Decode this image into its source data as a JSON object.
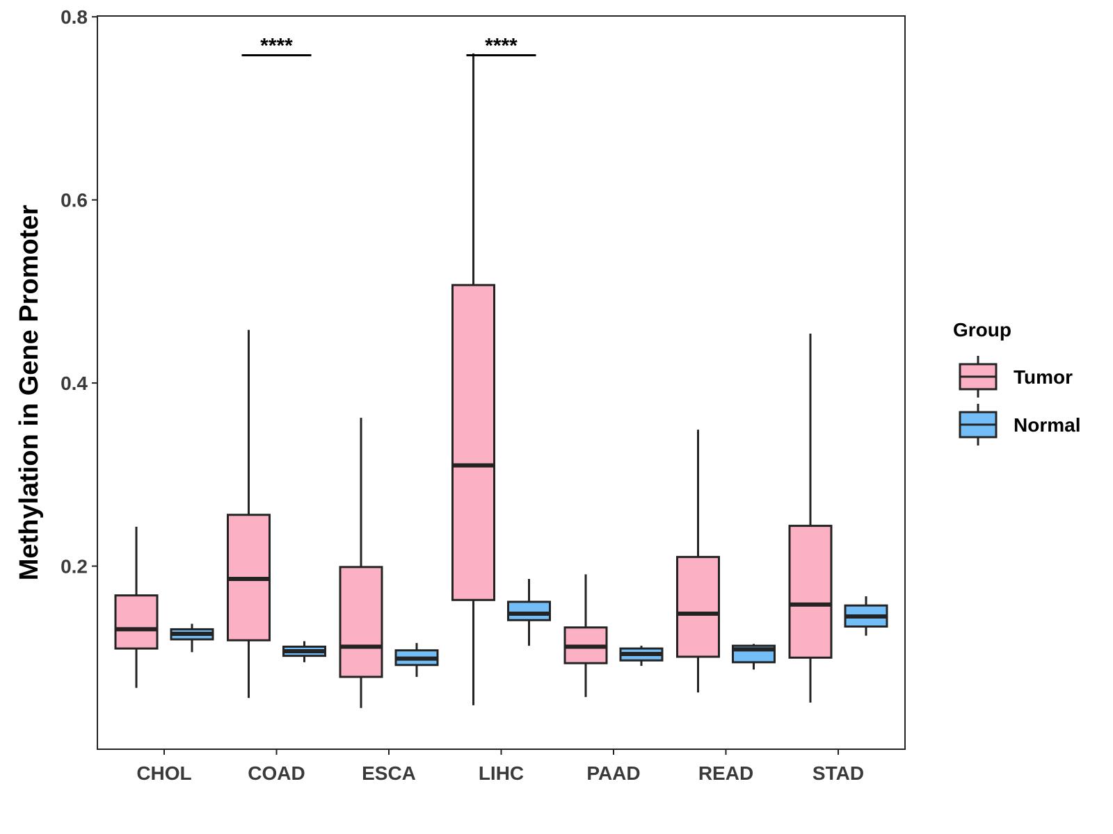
{
  "chart_data": {
    "type": "boxplot",
    "title": "",
    "xlabel": "",
    "ylabel": "Methylation in Gene Promoter",
    "ylim": [
      0.0,
      0.81
    ],
    "yticks": [
      0.2,
      0.4,
      0.6,
      0.8
    ],
    "ytick_labels": [
      "0.2",
      "0.4",
      "0.6",
      "0.8"
    ],
    "grid": false,
    "categories": [
      "CHOL",
      "COAD",
      "ESCA",
      "LIHC",
      "PAAD",
      "READ",
      "STAD"
    ],
    "legend": {
      "title": "Group",
      "position": "right",
      "entries": [
        "Tumor",
        "Normal"
      ]
    },
    "colors": {
      "Tumor": "#FBB1C3",
      "Normal": "#74BEF8",
      "line": "#232323"
    },
    "series": [
      {
        "name": "Tumor",
        "boxes": [
          {
            "category": "CHOL",
            "min": 0.067,
            "q1": 0.11,
            "median": 0.131,
            "q3": 0.168,
            "max": 0.243
          },
          {
            "category": "COAD",
            "min": 0.056,
            "q1": 0.119,
            "median": 0.186,
            "q3": 0.256,
            "max": 0.458
          },
          {
            "category": "ESCA",
            "min": 0.045,
            "q1": 0.079,
            "median": 0.112,
            "q3": 0.199,
            "max": 0.362
          },
          {
            "category": "LIHC",
            "min": 0.048,
            "q1": 0.163,
            "median": 0.31,
            "q3": 0.507,
            "max": 0.76
          },
          {
            "category": "PAAD",
            "min": 0.057,
            "q1": 0.094,
            "median": 0.112,
            "q3": 0.133,
            "max": 0.191
          },
          {
            "category": "READ",
            "min": 0.062,
            "q1": 0.101,
            "median": 0.148,
            "q3": 0.21,
            "max": 0.349
          },
          {
            "category": "STAD",
            "min": 0.051,
            "q1": 0.1,
            "median": 0.158,
            "q3": 0.244,
            "max": 0.454
          }
        ]
      },
      {
        "name": "Normal",
        "boxes": [
          {
            "category": "CHOL",
            "min": 0.106,
            "q1": 0.12,
            "median": 0.126,
            "q3": 0.131,
            "max": 0.137
          },
          {
            "category": "COAD",
            "min": 0.095,
            "q1": 0.102,
            "median": 0.107,
            "q3": 0.112,
            "max": 0.118
          },
          {
            "category": "ESCA",
            "min": 0.079,
            "q1": 0.092,
            "median": 0.099,
            "q3": 0.108,
            "max": 0.116
          },
          {
            "category": "LIHC",
            "min": 0.113,
            "q1": 0.141,
            "median": 0.148,
            "q3": 0.161,
            "max": 0.186
          },
          {
            "category": "PAAD",
            "min": 0.091,
            "q1": 0.097,
            "median": 0.104,
            "q3": 0.11,
            "max": 0.113
          },
          {
            "category": "READ",
            "min": 0.087,
            "q1": 0.095,
            "median": 0.109,
            "q3": 0.113,
            "max": 0.115
          },
          {
            "category": "STAD",
            "min": 0.124,
            "q1": 0.134,
            "median": 0.145,
            "q3": 0.157,
            "max": 0.167
          }
        ]
      }
    ],
    "annotations": [
      {
        "category": "COAD",
        "text": "****",
        "y": 0.758
      },
      {
        "category": "LIHC",
        "text": "****",
        "y": 0.758
      }
    ]
  }
}
